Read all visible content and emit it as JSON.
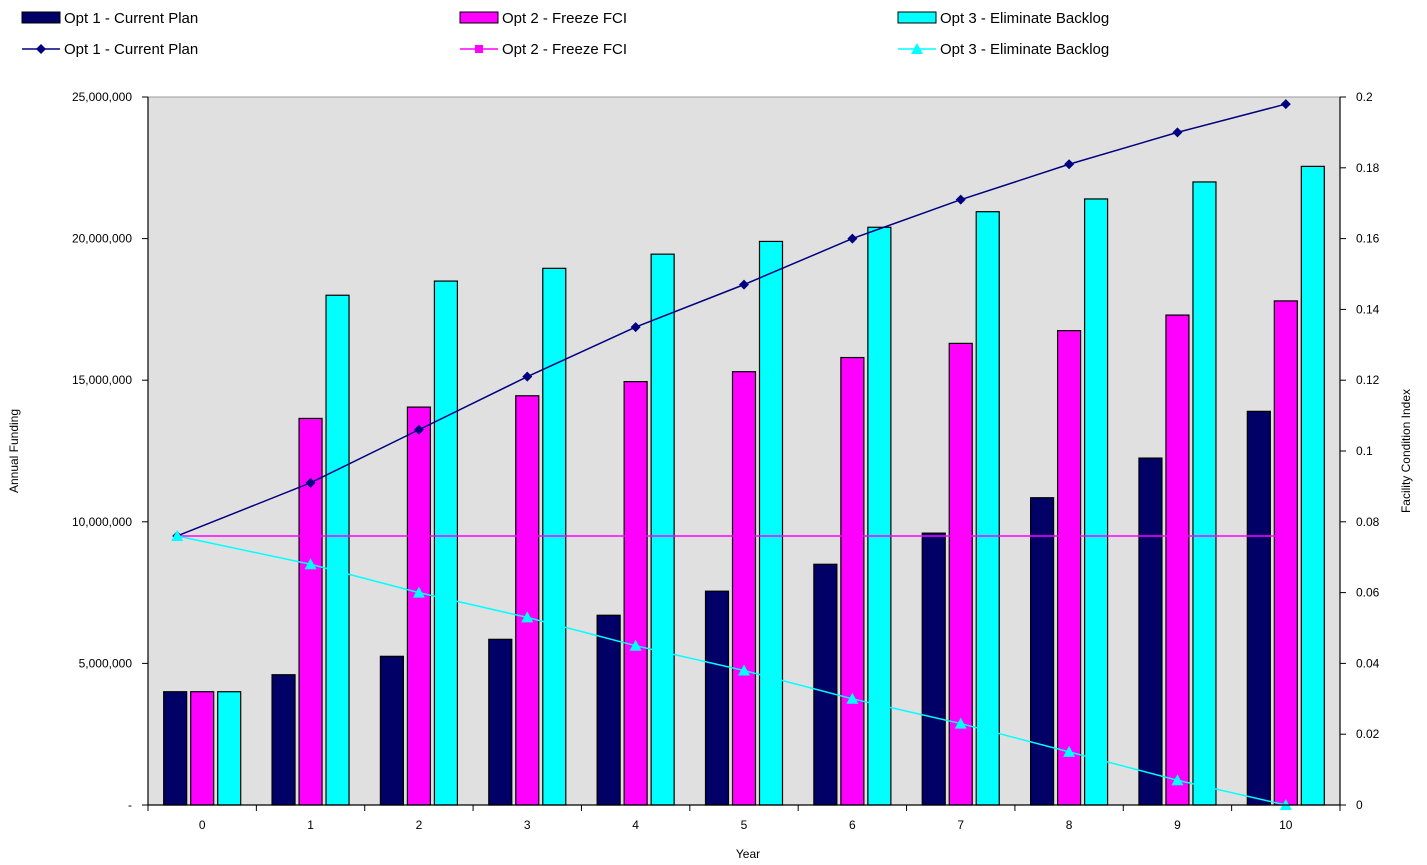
{
  "chart_data": {
    "type": "bar",
    "categories": [
      "0",
      "1",
      "2",
      "3",
      "4",
      "5",
      "6",
      "7",
      "8",
      "9",
      "10"
    ],
    "bar_series": [
      {
        "name": "Opt 1 - Current Plan",
        "color": "#000066",
        "values": [
          4000000,
          4600000,
          5250000,
          5850000,
          6700000,
          7550000,
          8500000,
          9600000,
          10850000,
          12250000,
          13900000
        ]
      },
      {
        "name": "Opt 2 - Freeze FCI",
        "color": "#ff00ff",
        "values": [
          4000000,
          13650000,
          14050000,
          14450000,
          14950000,
          15300000,
          15800000,
          16300000,
          16750000,
          17300000,
          17800000
        ]
      },
      {
        "name": "Opt 3 - Eliminate Backlog",
        "color": "#00ffff",
        "values": [
          4000000,
          18000000,
          18500000,
          18950000,
          19450000,
          19900000,
          20400000,
          20950000,
          21400000,
          22000000,
          22550000
        ]
      }
    ],
    "line_series": [
      {
        "name": "Opt 1 - Current Plan",
        "color": "#000080",
        "marker": "diamond",
        "values": [
          0.076,
          0.091,
          0.106,
          0.121,
          0.135,
          0.147,
          0.16,
          0.171,
          0.181,
          0.19,
          0.198
        ]
      },
      {
        "name": "Opt 2 - Freeze FCI",
        "color": "#ff00ff",
        "marker": "square",
        "values": [
          0.076,
          0.076,
          0.076,
          0.076,
          0.076,
          0.076,
          0.076,
          0.076,
          0.076,
          0.076,
          0.076
        ]
      },
      {
        "name": "Opt 3 - Eliminate Backlog",
        "color": "#00ffff",
        "marker": "triangle",
        "values": [
          0.076,
          0.068,
          0.06,
          0.053,
          0.045,
          0.038,
          0.03,
          0.023,
          0.015,
          0.007,
          0.0
        ]
      }
    ],
    "xlabel": "Year",
    "ylabel": "Annual Funding",
    "y2label": "Facility Condition Index",
    "ylim": [
      0,
      25000000
    ],
    "y2lim": [
      0,
      0.2
    ],
    "yticks": [
      "-",
      "5,000,000",
      "10,000,000",
      "15,000,000",
      "20,000,000",
      "25,000,000"
    ],
    "y2ticks": [
      "0",
      "0.02",
      "0.04",
      "0.06",
      "0.08",
      "0.1",
      "0.12",
      "0.14",
      "0.16",
      "0.18",
      "0.2"
    ],
    "grid": false,
    "plot_background": "#e0e0e0",
    "legend_position": "top"
  }
}
